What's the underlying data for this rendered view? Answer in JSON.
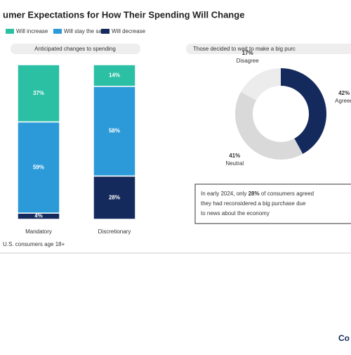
{
  "chart_data": [
    {
      "type": "stacked_bar",
      "title": "umer Expectations for How Their Spending Will Change",
      "subtitle": "Anticipated changes to spending",
      "categories": [
        "Mandatory",
        "Discretionary"
      ],
      "ylim": [
        0,
        100
      ],
      "series": [
        {
          "name": "Will increase",
          "color": "#2bbfa4",
          "values": [
            37,
            14
          ],
          "value_labels": [
            "37%",
            "14%"
          ]
        },
        {
          "name": "Will stay the same",
          "color": "#2c9ad8",
          "values": [
            59,
            58
          ],
          "value_labels": [
            "59%",
            "58%"
          ]
        },
        {
          "name": "Will decrease",
          "color": "#152a5c",
          "values": [
            4,
            28
          ],
          "value_labels": [
            "4%",
            "28%"
          ]
        }
      ]
    },
    {
      "type": "donut",
      "title": "Those decided to wait to make a big purc",
      "categories": [
        "Agreed",
        "Neutral",
        "Disagree"
      ],
      "values": [
        42,
        41,
        17
      ],
      "value_labels": [
        "42%",
        "41%",
        "17%"
      ],
      "colors": [
        "#152a5c",
        "#d9d9d9",
        "#ececec"
      ]
    }
  ],
  "callout": {
    "lines": [
      "In early 2024, only",
      "28%",
      "of consumers agreed",
      "they had reconsidered a big purchase due",
      "to news about the economy"
    ]
  },
  "footnote": "U.S. consumers age 18+",
  "logo": "Co"
}
